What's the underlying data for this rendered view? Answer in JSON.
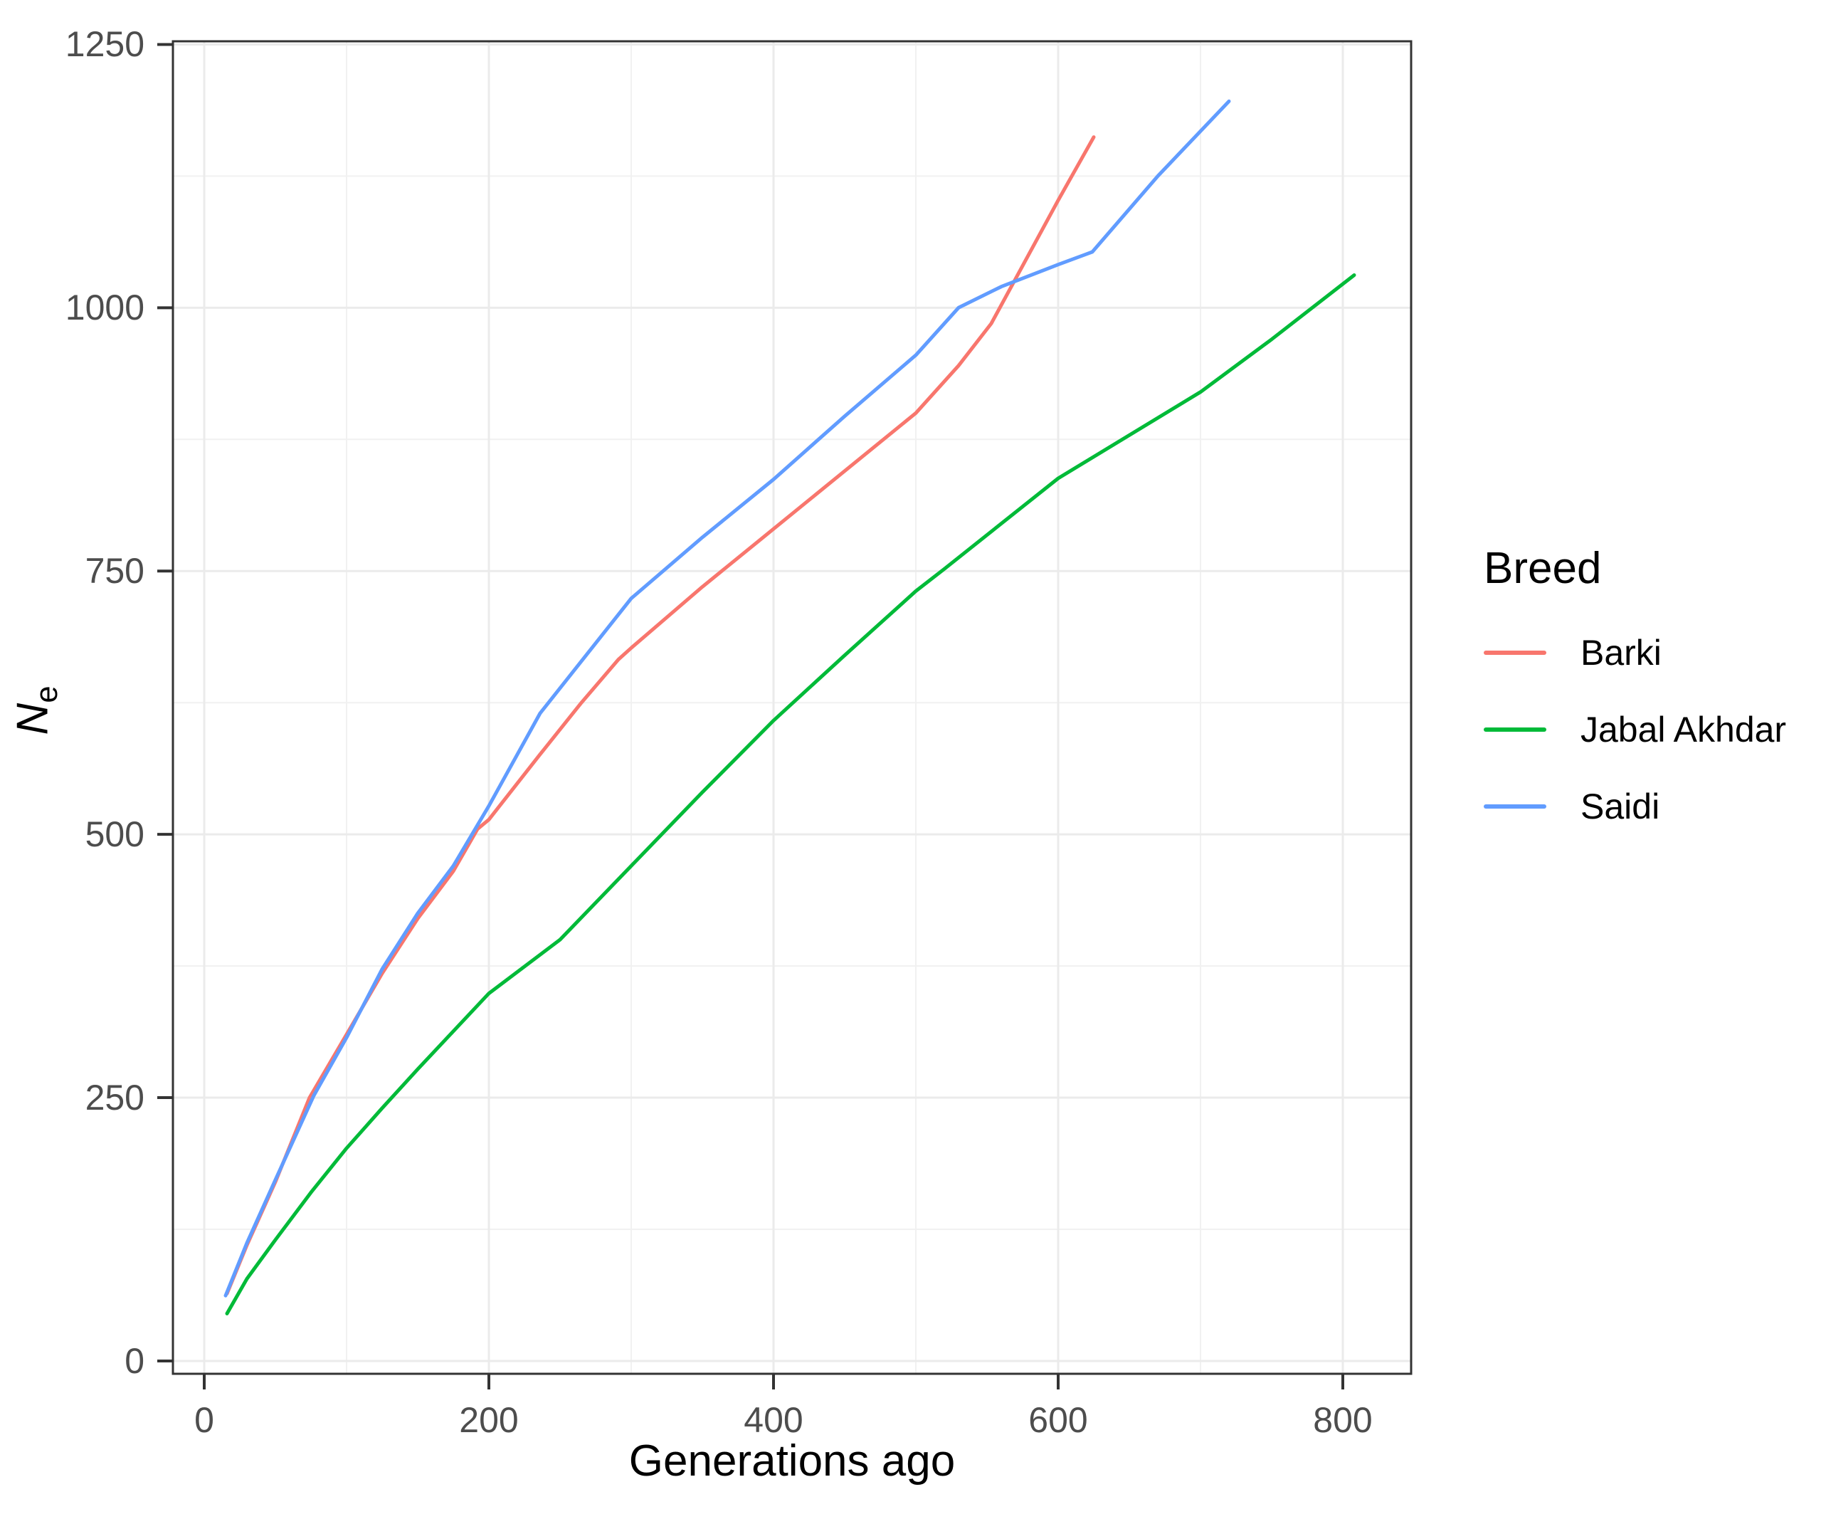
{
  "chart_data": {
    "type": "line",
    "title": "",
    "xlabel": "Generations ago",
    "ylabel": "Ne",
    "ylabel_main": "N",
    "ylabel_sub": "e",
    "x_domain": [
      -22,
      848
    ],
    "y_domain": [
      -12.2,
      1253
    ],
    "x_ticks": [
      0,
      200,
      400,
      600,
      800
    ],
    "y_ticks": [
      0,
      250,
      500,
      750,
      1000,
      1250
    ],
    "x_minor_ticks": [
      100,
      300,
      500,
      700
    ],
    "y_minor_ticks": [
      125,
      375,
      625,
      875,
      1125
    ],
    "grid": true,
    "legend_position": "right",
    "series": [
      {
        "name": "Barki",
        "color": "#F8766D",
        "points": [
          [
            16,
            64
          ],
          [
            30,
            110
          ],
          [
            50,
            170
          ],
          [
            74,
            250
          ],
          [
            100,
            310
          ],
          [
            125,
            368
          ],
          [
            150,
            420
          ],
          [
            175,
            465
          ],
          [
            192,
            505
          ],
          [
            200,
            514
          ],
          [
            236,
            576
          ],
          [
            265,
            625
          ],
          [
            291,
            666
          ],
          [
            300,
            677
          ],
          [
            350,
            735
          ],
          [
            400,
            790
          ],
          [
            450,
            845
          ],
          [
            500,
            900
          ],
          [
            530,
            945
          ],
          [
            553,
            985
          ],
          [
            600,
            1102
          ],
          [
            625,
            1162
          ]
        ]
      },
      {
        "name": "Jabal Akhdar",
        "color": "#00BA38",
        "points": [
          [
            16,
            45
          ],
          [
            30,
            78
          ],
          [
            50,
            115
          ],
          [
            75,
            160
          ],
          [
            100,
            202
          ],
          [
            125,
            240
          ],
          [
            150,
            277
          ],
          [
            175,
            313
          ],
          [
            200,
            349
          ],
          [
            250,
            400
          ],
          [
            300,
            470
          ],
          [
            350,
            540
          ],
          [
            400,
            608
          ],
          [
            450,
            670
          ],
          [
            500,
            731
          ],
          [
            520,
            752
          ],
          [
            600,
            838
          ],
          [
            700,
            920
          ],
          [
            750,
            970
          ],
          [
            808,
            1031
          ]
        ]
      },
      {
        "name": "Saidi",
        "color": "#619CFF",
        "points": [
          [
            15,
            62
          ],
          [
            30,
            112
          ],
          [
            50,
            172
          ],
          [
            77,
            252
          ],
          [
            100,
            307
          ],
          [
            125,
            372
          ],
          [
            150,
            425
          ],
          [
            175,
            470
          ],
          [
            200,
            527
          ],
          [
            236,
            615
          ],
          [
            300,
            724
          ],
          [
            350,
            782
          ],
          [
            400,
            837
          ],
          [
            450,
            897
          ],
          [
            500,
            955
          ],
          [
            530,
            1000
          ],
          [
            560,
            1020
          ],
          [
            600,
            1041
          ],
          [
            624,
            1053
          ],
          [
            670,
            1125
          ],
          [
            720,
            1196
          ]
        ]
      }
    ]
  },
  "legend": {
    "title": "Breed"
  },
  "colors": {
    "grid_major": "#EBEBEB",
    "grid_minor": "#F1F1F1",
    "panel_border": "#333333",
    "tick_mark": "#333333",
    "tick_text": "#4D4D4D",
    "axis_title": "#000000",
    "panel_bg": "#FFFFFF"
  }
}
